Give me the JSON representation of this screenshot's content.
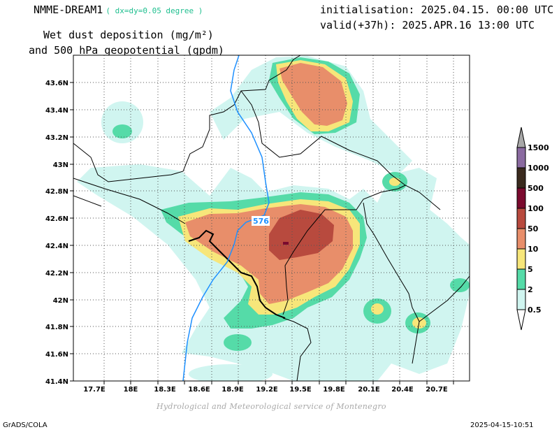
{
  "header": {
    "model": "NMME-DREAM1",
    "resolution": "( dx=dy=0.05 degree )",
    "title_line1": "Wet dust deposition (mg/m²)",
    "title_line2": "and 500 hPa geopotential (gpdm)",
    "init": "initialisation: 2025.04.15. 00:00 UTC",
    "valid": "valid(+37h): 2025.APR.16 13:00 UTC"
  },
  "map": {
    "lon_ticks": [
      "17.7E",
      "18E",
      "18.3E",
      "18.6E",
      "18.9E",
      "19.2E",
      "19.5E",
      "19.8E",
      "20.1E",
      "20.4E",
      "20.7E"
    ],
    "lat_ticks": [
      "43.6N",
      "43.4N",
      "43.2N",
      "43N",
      "42.8N",
      "42.6N",
      "42.4N",
      "42.2N",
      "42N",
      "41.8N",
      "41.6N",
      "41.4N"
    ],
    "contour_label": "576"
  },
  "legend": {
    "levels": [
      "0.5",
      "2",
      "5",
      "10",
      "50",
      "100",
      "500",
      "1000",
      "1500"
    ],
    "colors": [
      "#d0f5f0",
      "#55dba8",
      "#f7e67a",
      "#e88e6a",
      "#b84a3e",
      "#7a0a2e",
      "#3a2a1e",
      "#8a6aa0",
      "#a8a8a8"
    ]
  },
  "footer": {
    "left": "GrADS/COLA",
    "right": "2025-04-15-10:51",
    "credit": "Hydrological and Meteorological service of Montenegro"
  }
}
